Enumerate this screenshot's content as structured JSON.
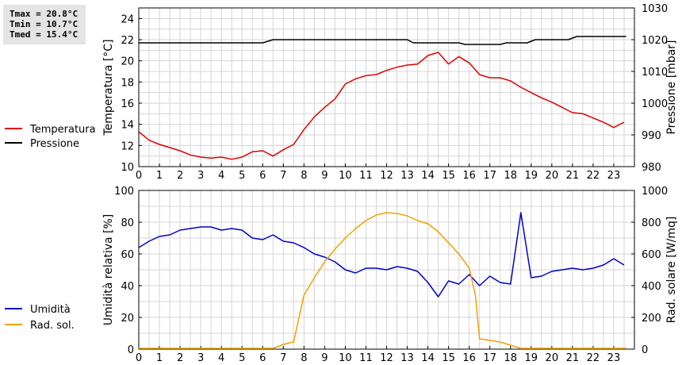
{
  "stats": {
    "tmax": "Tmax = 20.8°C",
    "tmin": "Tmin = 10.7°C",
    "tmed": "Tmed = 15.4°C"
  },
  "chart_data": [
    {
      "type": "line",
      "grid": true,
      "xlim": [
        0,
        24
      ],
      "x_ticks": [
        "0",
        "1",
        "2",
        "3",
        "4",
        "5",
        "6",
        "7",
        "8",
        "9",
        "10",
        "11",
        "12",
        "13",
        "14",
        "15",
        "16",
        "17",
        "18",
        "19",
        "20",
        "21",
        "22",
        "23"
      ],
      "ylabel_left": "Temperatura [°C]",
      "ylim_left": [
        10,
        25
      ],
      "yticks_left": [
        10,
        12,
        14,
        16,
        18,
        20,
        22,
        24
      ],
      "ylabel_right": "Pressione [mbar]",
      "ylim_right": [
        980,
        1030
      ],
      "yticks_right": [
        980,
        990,
        1000,
        1010,
        1020,
        1030
      ],
      "legend_position": "left",
      "series": [
        {
          "name": "Temperatura",
          "axis": "left",
          "color": "#dd0000",
          "x": [
            0,
            0.5,
            1,
            1.5,
            2,
            2.5,
            3,
            3.5,
            4,
            4.5,
            5,
            5.5,
            6,
            6.5,
            7,
            7.5,
            8,
            8.5,
            9,
            9.5,
            10,
            10.5,
            11,
            11.5,
            12,
            12.5,
            13,
            13.5,
            14,
            14.5,
            15,
            15.5,
            16,
            16.5,
            17,
            17.5,
            18,
            18.5,
            19,
            19.5,
            20,
            20.5,
            21,
            21.5,
            22,
            22.5,
            23,
            23.5
          ],
          "y": [
            13.3,
            12.5,
            12.1,
            11.8,
            11.5,
            11.1,
            10.9,
            10.8,
            10.9,
            10.7,
            10.9,
            11.4,
            11.5,
            11.0,
            11.6,
            12.1,
            13.5,
            14.7,
            15.6,
            16.4,
            17.8,
            18.3,
            18.6,
            18.7,
            19.1,
            19.4,
            19.6,
            19.7,
            20.5,
            20.8,
            19.7,
            20.4,
            19.8,
            18.7,
            18.4,
            18.4,
            18.1,
            17.5,
            17.0,
            16.5,
            16.1,
            15.6,
            15.1,
            15.0,
            14.6,
            14.2,
            13.7,
            14.2
          ]
        },
        {
          "name": "Pressione",
          "axis": "right",
          "color": "#000000",
          "x": [
            0,
            6,
            6.5,
            13,
            13.3,
            15.5,
            15.8,
            17.5,
            17.8,
            18.8,
            19.2,
            20.8,
            21.2,
            23.6
          ],
          "y": [
            1019,
            1019,
            1020,
            1020,
            1019,
            1019,
            1018.5,
            1018.5,
            1019,
            1019,
            1020,
            1020,
            1021,
            1021
          ]
        }
      ]
    },
    {
      "type": "line",
      "grid": true,
      "xlim": [
        0,
        24
      ],
      "x_ticks": [
        "0",
        "1",
        "2",
        "3",
        "4",
        "5",
        "6",
        "7",
        "8",
        "9",
        "10",
        "11",
        "12",
        "13",
        "14",
        "15",
        "16",
        "17",
        "18",
        "19",
        "20",
        "21",
        "22",
        "23"
      ],
      "ylabel_left": "Umidità relativa [%]",
      "ylim_left": [
        0,
        100
      ],
      "yticks_left": [
        0,
        20,
        40,
        60,
        80,
        100
      ],
      "ylabel_right": "Rad. solare [W/mq]",
      "ylim_right": [
        0,
        1000
      ],
      "yticks_right": [
        0,
        200,
        400,
        600,
        800,
        1000
      ],
      "legend_position": "left",
      "series": [
        {
          "name": "Umidità",
          "axis": "left",
          "color": "#0000cc",
          "x": [
            0,
            0.5,
            1,
            1.5,
            2,
            2.5,
            3,
            3.5,
            4,
            4.5,
            5,
            5.5,
            6,
            6.5,
            7,
            7.5,
            8,
            8.5,
            9,
            9.5,
            10,
            10.5,
            11,
            11.5,
            12,
            12.5,
            13,
            13.5,
            14,
            14.5,
            15,
            15.5,
            16,
            16.5,
            17,
            17.5,
            18,
            18.5,
            19,
            19.5,
            20,
            20.5,
            21,
            21.5,
            22,
            22.5,
            23,
            23.5
          ],
          "y": [
            64,
            68,
            71,
            72,
            75,
            76,
            77,
            77,
            75,
            76,
            75,
            70,
            69,
            72,
            68,
            67,
            64,
            60,
            58,
            55,
            50,
            48,
            51,
            51,
            50,
            52,
            51,
            49,
            42,
            33,
            43,
            41,
            47,
            40,
            46,
            42,
            41,
            86,
            45,
            46,
            49,
            50,
            51,
            50,
            51,
            53,
            57,
            53
          ]
        },
        {
          "name": "Rad. sol.",
          "axis": "right",
          "color": "#f0a000",
          "x": [
            0,
            6.5,
            7,
            7.5,
            8,
            8.5,
            9,
            9.5,
            10,
            10.5,
            11,
            11.5,
            12,
            12.5,
            13,
            13.5,
            14,
            14.5,
            15,
            15.5,
            16,
            16.3,
            16.5,
            17,
            17.5,
            18,
            18.5,
            19,
            20,
            21,
            22,
            23,
            23.6
          ],
          "y": [
            5,
            5,
            30,
            45,
            340,
            450,
            550,
            630,
            700,
            760,
            810,
            845,
            860,
            855,
            840,
            810,
            790,
            740,
            670,
            600,
            510,
            340,
            65,
            55,
            45,
            25,
            5,
            5,
            5,
            5,
            5,
            5,
            5
          ]
        }
      ]
    }
  ]
}
